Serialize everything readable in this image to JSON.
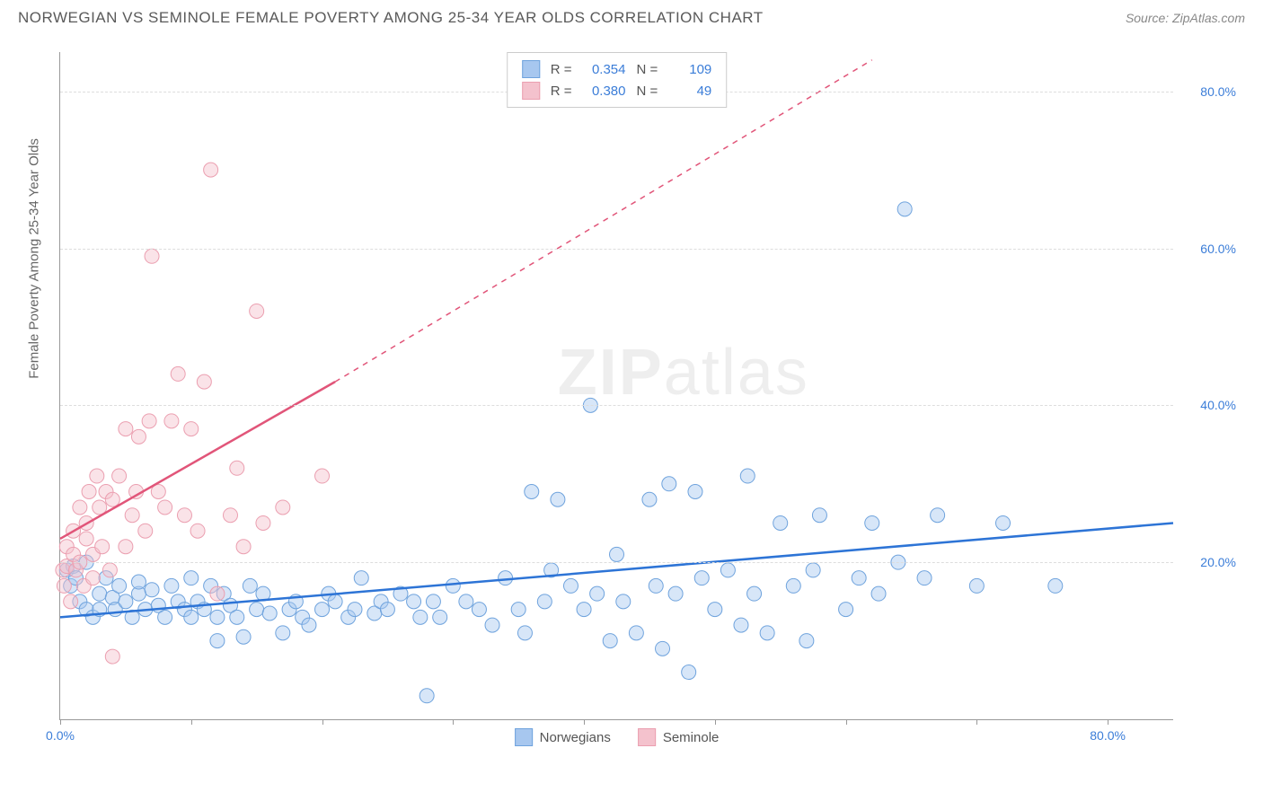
{
  "header": {
    "title": "NORWEGIAN VS SEMINOLE FEMALE POVERTY AMONG 25-34 YEAR OLDS CORRELATION CHART",
    "source_prefix": "Source: ",
    "source_name": "ZipAtlas.com"
  },
  "chart": {
    "type": "scatter",
    "y_axis_label": "Female Poverty Among 25-34 Year Olds",
    "background_color": "#ffffff",
    "grid_color": "#dddddd",
    "axis_color": "#999999",
    "xlim": [
      0,
      85
    ],
    "ylim": [
      0,
      85
    ],
    "x_ticks": [
      0,
      10,
      20,
      30,
      40,
      50,
      60,
      70,
      80
    ],
    "x_tick_labels": {
      "0": "0.0%",
      "80": "80.0%"
    },
    "y_ticks": [
      20,
      40,
      60,
      80
    ],
    "y_tick_labels": {
      "20": "20.0%",
      "40": "40.0%",
      "60": "60.0%",
      "80": "80.0%"
    },
    "marker_radius": 8,
    "marker_opacity": 0.45,
    "line_width_solid": 2.5,
    "line_width_dash": 1.5,
    "watermark_text_bold": "ZIP",
    "watermark_text_light": "atlas",
    "series": [
      {
        "name": "Norwegians",
        "color_fill": "#a7c7ef",
        "color_stroke": "#6fa3dd",
        "line_color": "#2d74d6",
        "legend_label": "Norwegians",
        "R": "0.354",
        "N": "109",
        "trend_solid": {
          "x1": 0,
          "y1": 13,
          "x2": 85,
          "y2": 25
        },
        "trend_dash": null,
        "points": [
          [
            0.5,
            19
          ],
          [
            0.8,
            17
          ],
          [
            1,
            19.5
          ],
          [
            1.2,
            18
          ],
          [
            1.5,
            15
          ],
          [
            2,
            14
          ],
          [
            2,
            20
          ],
          [
            2.5,
            13
          ],
          [
            3,
            16
          ],
          [
            3,
            14
          ],
          [
            3.5,
            18
          ],
          [
            4,
            15.5
          ],
          [
            4.2,
            14
          ],
          [
            4.5,
            17
          ],
          [
            5,
            15
          ],
          [
            5.5,
            13
          ],
          [
            6,
            16
          ],
          [
            6,
            17.5
          ],
          [
            6.5,
            14
          ],
          [
            7,
            16.5
          ],
          [
            7.5,
            14.5
          ],
          [
            8,
            13
          ],
          [
            8.5,
            17
          ],
          [
            9,
            15
          ],
          [
            9.5,
            14
          ],
          [
            10,
            13
          ],
          [
            10,
            18
          ],
          [
            10.5,
            15
          ],
          [
            11,
            14
          ],
          [
            11.5,
            17
          ],
          [
            12,
            10
          ],
          [
            12,
            13
          ],
          [
            12.5,
            16
          ],
          [
            13,
            14.5
          ],
          [
            13.5,
            13
          ],
          [
            14,
            10.5
          ],
          [
            14.5,
            17
          ],
          [
            15,
            14
          ],
          [
            15.5,
            16
          ],
          [
            16,
            13.5
          ],
          [
            17,
            11
          ],
          [
            17.5,
            14
          ],
          [
            18,
            15
          ],
          [
            18.5,
            13
          ],
          [
            19,
            12
          ],
          [
            20,
            14
          ],
          [
            20.5,
            16
          ],
          [
            21,
            15
          ],
          [
            22,
            13
          ],
          [
            22.5,
            14
          ],
          [
            23,
            18
          ],
          [
            24,
            13.5
          ],
          [
            24.5,
            15
          ],
          [
            25,
            14
          ],
          [
            26,
            16
          ],
          [
            27,
            15
          ],
          [
            27.5,
            13
          ],
          [
            28,
            3
          ],
          [
            28.5,
            15
          ],
          [
            29,
            13
          ],
          [
            30,
            17
          ],
          [
            31,
            15
          ],
          [
            32,
            14
          ],
          [
            33,
            12
          ],
          [
            34,
            18
          ],
          [
            35,
            14
          ],
          [
            35.5,
            11
          ],
          [
            36,
            29
          ],
          [
            37,
            15
          ],
          [
            37.5,
            19
          ],
          [
            38,
            28
          ],
          [
            39,
            17
          ],
          [
            40,
            14
          ],
          [
            40.5,
            40
          ],
          [
            41,
            16
          ],
          [
            42,
            10
          ],
          [
            42.5,
            21
          ],
          [
            43,
            15
          ],
          [
            44,
            11
          ],
          [
            45,
            28
          ],
          [
            45.5,
            17
          ],
          [
            46,
            9
          ],
          [
            46.5,
            30
          ],
          [
            47,
            16
          ],
          [
            48,
            6
          ],
          [
            48.5,
            29
          ],
          [
            49,
            18
          ],
          [
            50,
            14
          ],
          [
            51,
            19
          ],
          [
            52,
            12
          ],
          [
            52.5,
            31
          ],
          [
            53,
            16
          ],
          [
            54,
            11
          ],
          [
            55,
            25
          ],
          [
            56,
            17
          ],
          [
            57,
            10
          ],
          [
            57.5,
            19
          ],
          [
            58,
            26
          ],
          [
            60,
            14
          ],
          [
            61,
            18
          ],
          [
            62,
            25
          ],
          [
            62.5,
            16
          ],
          [
            64,
            20
          ],
          [
            64.5,
            65
          ],
          [
            66,
            18
          ],
          [
            67,
            26
          ],
          [
            70,
            17
          ],
          [
            72,
            25
          ],
          [
            76,
            17
          ]
        ]
      },
      {
        "name": "Seminole",
        "color_fill": "#f4c2cd",
        "color_stroke": "#eb9fb0",
        "line_color": "#e15579",
        "legend_label": "Seminole",
        "R": "0.380",
        "N": "49",
        "trend_solid": {
          "x1": 0,
          "y1": 23,
          "x2": 21,
          "y2": 43
        },
        "trend_dash": {
          "x1": 21,
          "y1": 43,
          "x2": 62,
          "y2": 84
        },
        "points": [
          [
            0.2,
            19
          ],
          [
            0.3,
            17
          ],
          [
            0.5,
            22
          ],
          [
            0.5,
            19.5
          ],
          [
            0.8,
            15
          ],
          [
            1,
            21
          ],
          [
            1,
            24
          ],
          [
            1.2,
            19
          ],
          [
            1.5,
            27
          ],
          [
            1.5,
            20
          ],
          [
            1.8,
            17
          ],
          [
            2,
            25
          ],
          [
            2,
            23
          ],
          [
            2.2,
            29
          ],
          [
            2.5,
            21
          ],
          [
            2.5,
            18
          ],
          [
            2.8,
            31
          ],
          [
            3,
            27
          ],
          [
            3.2,
            22
          ],
          [
            3.5,
            29
          ],
          [
            3.8,
            19
          ],
          [
            4,
            28
          ],
          [
            4,
            8
          ],
          [
            4.5,
            31
          ],
          [
            5,
            22
          ],
          [
            5,
            37
          ],
          [
            5.5,
            26
          ],
          [
            5.8,
            29
          ],
          [
            6,
            36
          ],
          [
            6.5,
            24
          ],
          [
            6.8,
            38
          ],
          [
            7,
            59
          ],
          [
            7.5,
            29
          ],
          [
            8,
            27
          ],
          [
            8.5,
            38
          ],
          [
            9,
            44
          ],
          [
            9.5,
            26
          ],
          [
            10,
            37
          ],
          [
            10.5,
            24
          ],
          [
            11,
            43
          ],
          [
            11.5,
            70
          ],
          [
            12,
            16
          ],
          [
            13,
            26
          ],
          [
            13.5,
            32
          ],
          [
            14,
            22
          ],
          [
            15,
            52
          ],
          [
            15.5,
            25
          ],
          [
            17,
            27
          ],
          [
            20,
            31
          ]
        ]
      }
    ]
  },
  "legend_top": {
    "r_label": "R =",
    "n_label": "N ="
  }
}
